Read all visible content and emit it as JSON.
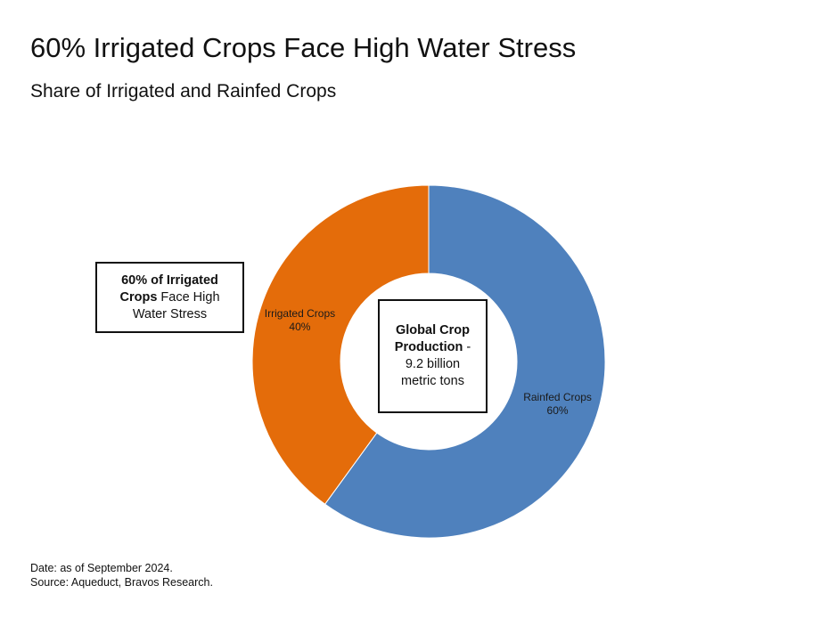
{
  "header": {
    "title": "60% Irrigated Crops Face High Water Stress",
    "subtitle": "Share of Irrigated and Rainfed Crops"
  },
  "callout": {
    "bold": "60% of Irrigated Crops",
    "rest": " Face High Water Stress"
  },
  "center": {
    "bold": "Global Crop Production",
    "dash": " -",
    "rest": "9.2 billion metric tons"
  },
  "footer": {
    "date": "Date: as of September 2024.",
    "source": "Source: Aqueduct, Bravos Research."
  },
  "chart_data": {
    "type": "pie",
    "donut": true,
    "title": "60% Irrigated Crops Face High Water Stress",
    "subtitle": "Share of Irrigated and Rainfed Crops",
    "categories": [
      "Rainfed Crops",
      "Irrigated Crops"
    ],
    "values": [
      60,
      40
    ],
    "value_labels": [
      "60%",
      "40%"
    ],
    "colors": [
      "#4F81BD",
      "#E46C0A"
    ],
    "start_angle_deg": 0,
    "direction": "clockwise",
    "legend": "none"
  }
}
